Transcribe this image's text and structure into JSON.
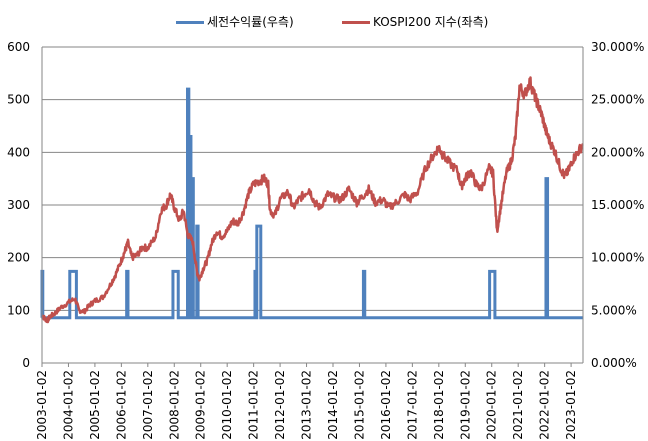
{
  "chart_data": {
    "type": "line",
    "legend_position": "top",
    "grid": true,
    "x_ticks": [
      "2003-01-02",
      "2004-01-02",
      "2005-01-02",
      "2006-01-02",
      "2007-01-02",
      "2008-01-02",
      "2009-01-02",
      "2010-01-02",
      "2011-01-02",
      "2012-01-02",
      "2013-01-02",
      "2014-01-02",
      "2015-01-02",
      "2016-01-02",
      "2017-01-02",
      "2018-01-02",
      "2019-01-02",
      "2020-01-02",
      "2021-01-02",
      "2022-01-02",
      "2023-01-02"
    ],
    "y_left": {
      "ylim": [
        0,
        600
      ],
      "ticks": [
        "0",
        "100",
        "200",
        "300",
        "400",
        "500",
        "600"
      ]
    },
    "y_right": {
      "ylim": [
        0,
        30
      ],
      "ticks": [
        "0.000%",
        "5.000%",
        "10.000%",
        "15.000%",
        "20.000%",
        "25.000%",
        "30.000%"
      ]
    },
    "series": [
      {
        "name": "세전수익률(우측)",
        "axis": "right",
        "color": "#4f81bd",
        "baseline": 4.3,
        "spikes": [
          {
            "x": 2003.0,
            "y": 8.7,
            "w": 0.03
          },
          {
            "x": 2004.05,
            "y": 8.7,
            "w": 0.25
          },
          {
            "x": 2006.2,
            "y": 8.7,
            "w": 0.05
          },
          {
            "x": 2007.95,
            "y": 8.7,
            "w": 0.2
          },
          {
            "x": 2008.5,
            "y": 26.0,
            "w": 0.05
          },
          {
            "x": 2008.58,
            "y": 21.5,
            "w": 0.05
          },
          {
            "x": 2008.68,
            "y": 17.5,
            "w": 0.04
          },
          {
            "x": 2008.85,
            "y": 13.0,
            "w": 0.05
          },
          {
            "x": 2011.05,
            "y": 8.7,
            "w": 0.05
          },
          {
            "x": 2011.12,
            "y": 13.0,
            "w": 0.15
          },
          {
            "x": 2015.15,
            "y": 8.7,
            "w": 0.05
          },
          {
            "x": 2019.92,
            "y": 8.7,
            "w": 0.2
          },
          {
            "x": 2022.05,
            "y": 17.5,
            "w": 0.06
          }
        ]
      },
      {
        "name": "KOSPI200 지수(좌측)",
        "axis": "left",
        "color": "#c0504d",
        "points": [
          [
            2003.0,
            90
          ],
          [
            2003.1,
            85
          ],
          [
            2003.2,
            80
          ],
          [
            2003.3,
            88
          ],
          [
            2003.5,
            95
          ],
          [
            2003.7,
            105
          ],
          [
            2004.0,
            115
          ],
          [
            2004.25,
            122
          ],
          [
            2004.4,
            100
          ],
          [
            2004.6,
            98
          ],
          [
            2004.8,
            110
          ],
          [
            2005.0,
            118
          ],
          [
            2005.3,
            125
          ],
          [
            2005.6,
            150
          ],
          [
            2005.8,
            170
          ],
          [
            2006.0,
            195
          ],
          [
            2006.15,
            215
          ],
          [
            2006.25,
            228
          ],
          [
            2006.4,
            200
          ],
          [
            2006.6,
            205
          ],
          [
            2006.8,
            220
          ],
          [
            2007.0,
            218
          ],
          [
            2007.3,
            240
          ],
          [
            2007.5,
            290
          ],
          [
            2007.7,
            300
          ],
          [
            2007.85,
            320
          ],
          [
            2008.0,
            295
          ],
          [
            2008.2,
            270
          ],
          [
            2008.35,
            290
          ],
          [
            2008.5,
            245
          ],
          [
            2008.7,
            230
          ],
          [
            2008.85,
            175
          ],
          [
            2008.95,
            160
          ],
          [
            2009.1,
            180
          ],
          [
            2009.25,
            195
          ],
          [
            2009.4,
            225
          ],
          [
            2009.6,
            250
          ],
          [
            2009.8,
            240
          ],
          [
            2010.0,
            250
          ],
          [
            2010.2,
            270
          ],
          [
            2010.4,
            265
          ],
          [
            2010.6,
            285
          ],
          [
            2010.8,
            320
          ],
          [
            2011.0,
            340
          ],
          [
            2011.2,
            345
          ],
          [
            2011.4,
            350
          ],
          [
            2011.55,
            340
          ],
          [
            2011.62,
            290
          ],
          [
            2011.8,
            280
          ],
          [
            2012.0,
            310
          ],
          [
            2012.3,
            325
          ],
          [
            2012.5,
            295
          ],
          [
            2012.7,
            310
          ],
          [
            2012.9,
            320
          ],
          [
            2013.1,
            330
          ],
          [
            2013.3,
            305
          ],
          [
            2013.5,
            295
          ],
          [
            2013.8,
            320
          ],
          [
            2014.0,
            315
          ],
          [
            2014.3,
            310
          ],
          [
            2014.6,
            330
          ],
          [
            2014.9,
            305
          ],
          [
            2015.1,
            315
          ],
          [
            2015.35,
            330
          ],
          [
            2015.6,
            305
          ],
          [
            2015.9,
            310
          ],
          [
            2016.1,
            295
          ],
          [
            2016.4,
            305
          ],
          [
            2016.7,
            320
          ],
          [
            2016.9,
            310
          ],
          [
            2017.2,
            325
          ],
          [
            2017.5,
            370
          ],
          [
            2017.8,
            395
          ],
          [
            2018.0,
            410
          ],
          [
            2018.15,
            395
          ],
          [
            2018.4,
            380
          ],
          [
            2018.7,
            365
          ],
          [
            2018.85,
            335
          ],
          [
            2019.0,
            350
          ],
          [
            2019.2,
            365
          ],
          [
            2019.4,
            340
          ],
          [
            2019.6,
            330
          ],
          [
            2019.9,
            370
          ],
          [
            2020.05,
            360
          ],
          [
            2020.2,
            250
          ],
          [
            2020.35,
            300
          ],
          [
            2020.55,
            360
          ],
          [
            2020.75,
            385
          ],
          [
            2020.9,
            430
          ],
          [
            2021.05,
            525
          ],
          [
            2021.25,
            510
          ],
          [
            2021.45,
            535
          ],
          [
            2021.6,
            510
          ],
          [
            2021.75,
            490
          ],
          [
            2021.9,
            470
          ],
          [
            2022.05,
            440
          ],
          [
            2022.2,
            420
          ],
          [
            2022.4,
            400
          ],
          [
            2022.6,
            370
          ],
          [
            2022.75,
            355
          ],
          [
            2022.9,
            365
          ],
          [
            2023.05,
            385
          ],
          [
            2023.25,
            400
          ],
          [
            2023.45,
            415
          ]
        ]
      }
    ]
  }
}
